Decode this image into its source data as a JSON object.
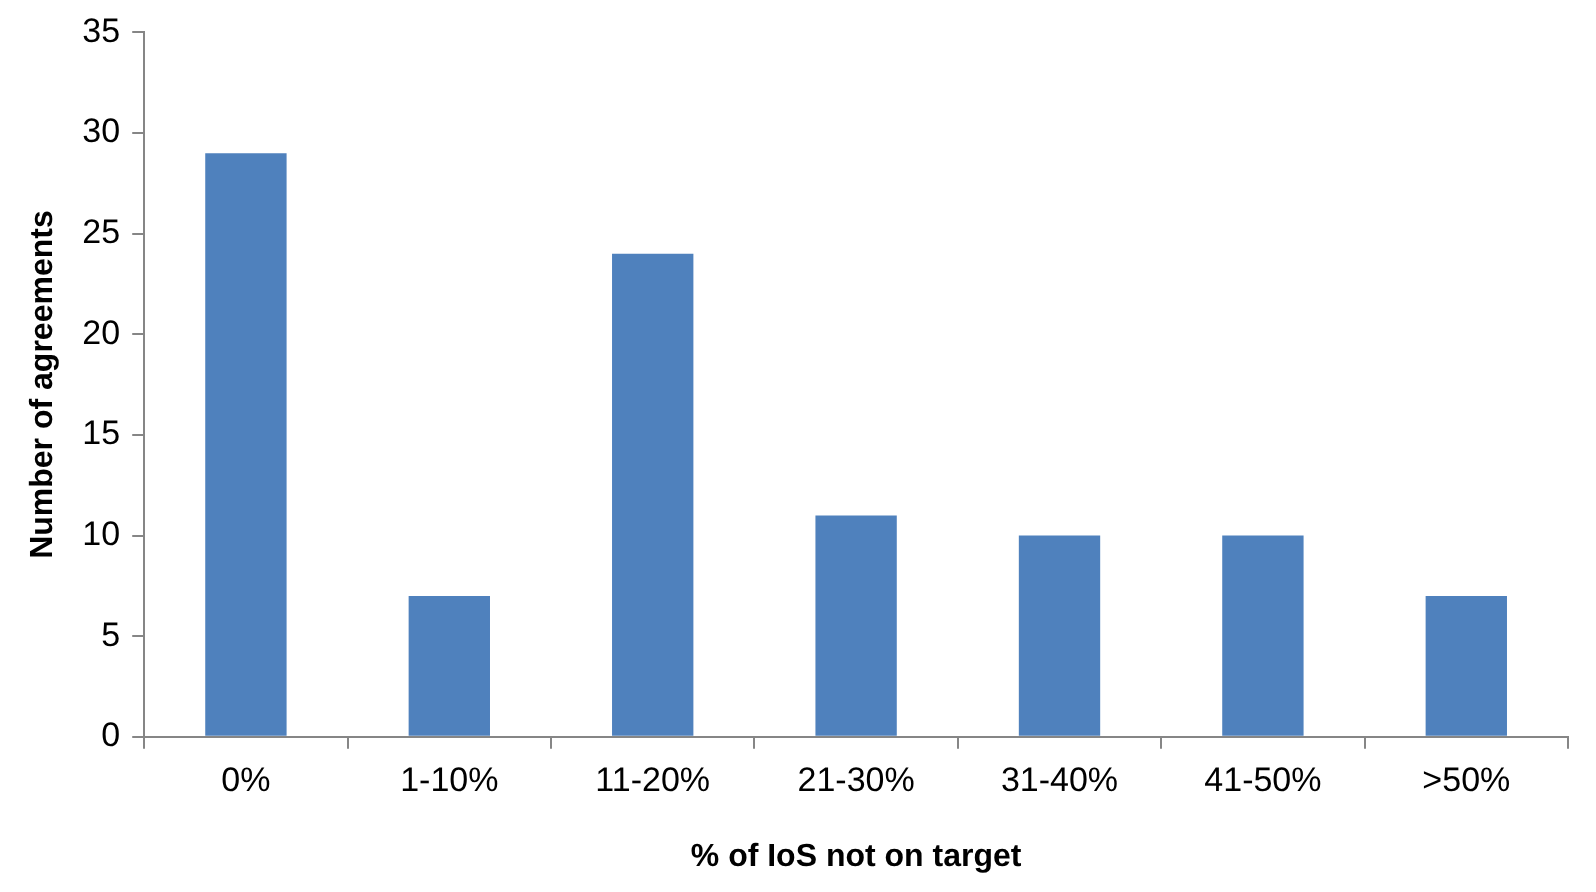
{
  "chart_data": {
    "type": "bar",
    "xlabel": "% of IoS not on target",
    "ylabel": "Number of agreements",
    "categories": [
      "0%",
      "1-10%",
      "11-20%",
      "21-30%",
      "31-40%",
      "41-50%",
      ">50%"
    ],
    "values": [
      29,
      7,
      24,
      11,
      10,
      10,
      7
    ],
    "color": "#4f81bd",
    "ylim": [
      0,
      35
    ],
    "yticks": [
      0,
      5,
      10,
      15,
      20,
      25,
      30,
      35
    ],
    "grid": false,
    "legend": false
  }
}
